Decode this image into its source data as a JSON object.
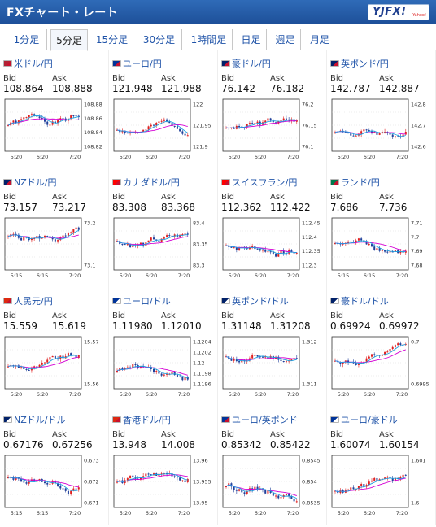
{
  "header": {
    "title": "FXチャート・レート",
    "logo_text": "YJFX!",
    "logo_tag": "Yahoo!"
  },
  "tabs": [
    {
      "label": "1分足",
      "active": false
    },
    {
      "label": "5分足",
      "active": true
    },
    {
      "label": "15分足",
      "active": false
    },
    {
      "label": "30分足",
      "active": false
    },
    {
      "label": "1時間足",
      "active": false
    },
    {
      "label": "日足",
      "active": false
    },
    {
      "label": "週足",
      "active": false
    },
    {
      "label": "月足",
      "active": false
    }
  ],
  "labels": {
    "bid": "Bid",
    "ask": "Ask"
  },
  "colors": {
    "up": "#e02020",
    "down": "#1f3f9a",
    "ma_slow": "#d400d4",
    "ma_fast": "#1d9fe0",
    "link": "#1f53a8"
  },
  "pairs": [
    {
      "name": "米ドル/円",
      "flag": "us-jp-flag-icon",
      "bid": "108.864",
      "ask": "108.888",
      "ticks": [
        "108.88",
        "108.86",
        "108.84",
        "108.82"
      ],
      "xlabels": [
        "5:20",
        "6:20",
        "7:20"
      ]
    },
    {
      "name": "ユーロ/円",
      "flag": "eu-jp-flag-icon",
      "bid": "121.948",
      "ask": "121.988",
      "ticks": [
        "122",
        "121.95",
        "121.9"
      ],
      "xlabels": [
        "5:20",
        "6:20",
        "7:20"
      ]
    },
    {
      "name": "豪ドル/円",
      "flag": "au-jp-flag-icon",
      "bid": "76.142",
      "ask": "76.182",
      "ticks": [
        "76.2",
        "76.15",
        "76.1"
      ],
      "xlabels": [
        "5:20",
        "6:20",
        "7:20"
      ]
    },
    {
      "name": "英ポンド/円",
      "flag": "gb-jp-flag-icon",
      "bid": "142.787",
      "ask": "142.887",
      "ticks": [
        "142.8",
        "142.7",
        "142.6"
      ],
      "xlabels": [
        "5:20",
        "6:20",
        "7:20"
      ]
    },
    {
      "name": "NZドル/円",
      "flag": "nz-jp-flag-icon",
      "bid": "73.157",
      "ask": "73.217",
      "ticks": [
        "73.2",
        "73.1"
      ],
      "xlabels": [
        "5:15",
        "6:15",
        "7:20"
      ]
    },
    {
      "name": "カナダドル/円",
      "flag": "ca-jp-flag-icon",
      "bid": "83.308",
      "ask": "83.368",
      "ticks": [
        "83.4",
        "83.35",
        "83.3"
      ],
      "xlabels": [
        "5:20",
        "6:20",
        "7:20"
      ]
    },
    {
      "name": "スイスフラン/円",
      "flag": "ch-jp-flag-icon",
      "bid": "112.362",
      "ask": "112.422",
      "ticks": [
        "112.45",
        "112.4",
        "112.35",
        "112.3"
      ],
      "xlabels": [
        "5:20",
        "6:20",
        "7:20"
      ]
    },
    {
      "name": "ランド/円",
      "flag": "za-jp-flag-icon",
      "bid": "7.686",
      "ask": "7.736",
      "ticks": [
        "7.71",
        "7.7",
        "7.69",
        "7.68"
      ],
      "xlabels": [
        "5:15",
        "6:15",
        "7:20"
      ]
    },
    {
      "name": "人民元/円",
      "flag": "cn-jp-flag-icon",
      "bid": "15.559",
      "ask": "15.619",
      "ticks": [
        "15.57",
        "15.56"
      ],
      "xlabels": [
        "5:20",
        "6:20",
        "7:20"
      ]
    },
    {
      "name": "ユーロ/ドル",
      "flag": "eu-us-flag-icon",
      "bid": "1.11980",
      "ask": "1.12010",
      "ticks": [
        "1.1204",
        "1.1202",
        "1.12",
        "1.1198",
        "1.1196"
      ],
      "xlabels": [
        "5:20",
        "6:20",
        "7:20"
      ]
    },
    {
      "name": "英ポンド/ドル",
      "flag": "gb-us-flag-icon",
      "bid": "1.31148",
      "ask": "1.31208",
      "ticks": [
        "1.312",
        "1.311"
      ],
      "xlabels": [
        "5:20",
        "6:20",
        "7:20"
      ]
    },
    {
      "name": "豪ドル/ドル",
      "flag": "au-us-flag-icon",
      "bid": "0.69924",
      "ask": "0.69972",
      "ticks": [
        "0.7",
        "0.6995"
      ],
      "xlabels": [
        "5:20",
        "6:20",
        "7:20"
      ]
    },
    {
      "name": "NZドル/ドル",
      "flag": "nz-us-flag-icon",
      "bid": "0.67176",
      "ask": "0.67256",
      "ticks": [
        "0.673",
        "0.672",
        "0.671"
      ],
      "xlabels": [
        "5:15",
        "6:15",
        "7:20"
      ]
    },
    {
      "name": "香港ドル/円",
      "flag": "hk-jp-flag-icon",
      "bid": "13.948",
      "ask": "14.008",
      "ticks": [
        "13.96",
        "13.955",
        "13.95"
      ],
      "xlabels": [
        "5:20",
        "6:20",
        "7:20"
      ]
    },
    {
      "name": "ユーロ/英ポンド",
      "flag": "eu-gb-flag-icon",
      "bid": "0.85342",
      "ask": "0.85422",
      "ticks": [
        "0.8545",
        "0.854",
        "0.8535"
      ],
      "xlabels": [
        "5:20",
        "6:20",
        "7:20"
      ]
    },
    {
      "name": "ユーロ/豪ドル",
      "flag": "eu-au-flag-icon",
      "bid": "1.60074",
      "ask": "1.60154",
      "ticks": [
        "1.601",
        "1.6"
      ],
      "xlabels": [
        "5:20",
        "6:20",
        "7:20"
      ]
    }
  ]
}
